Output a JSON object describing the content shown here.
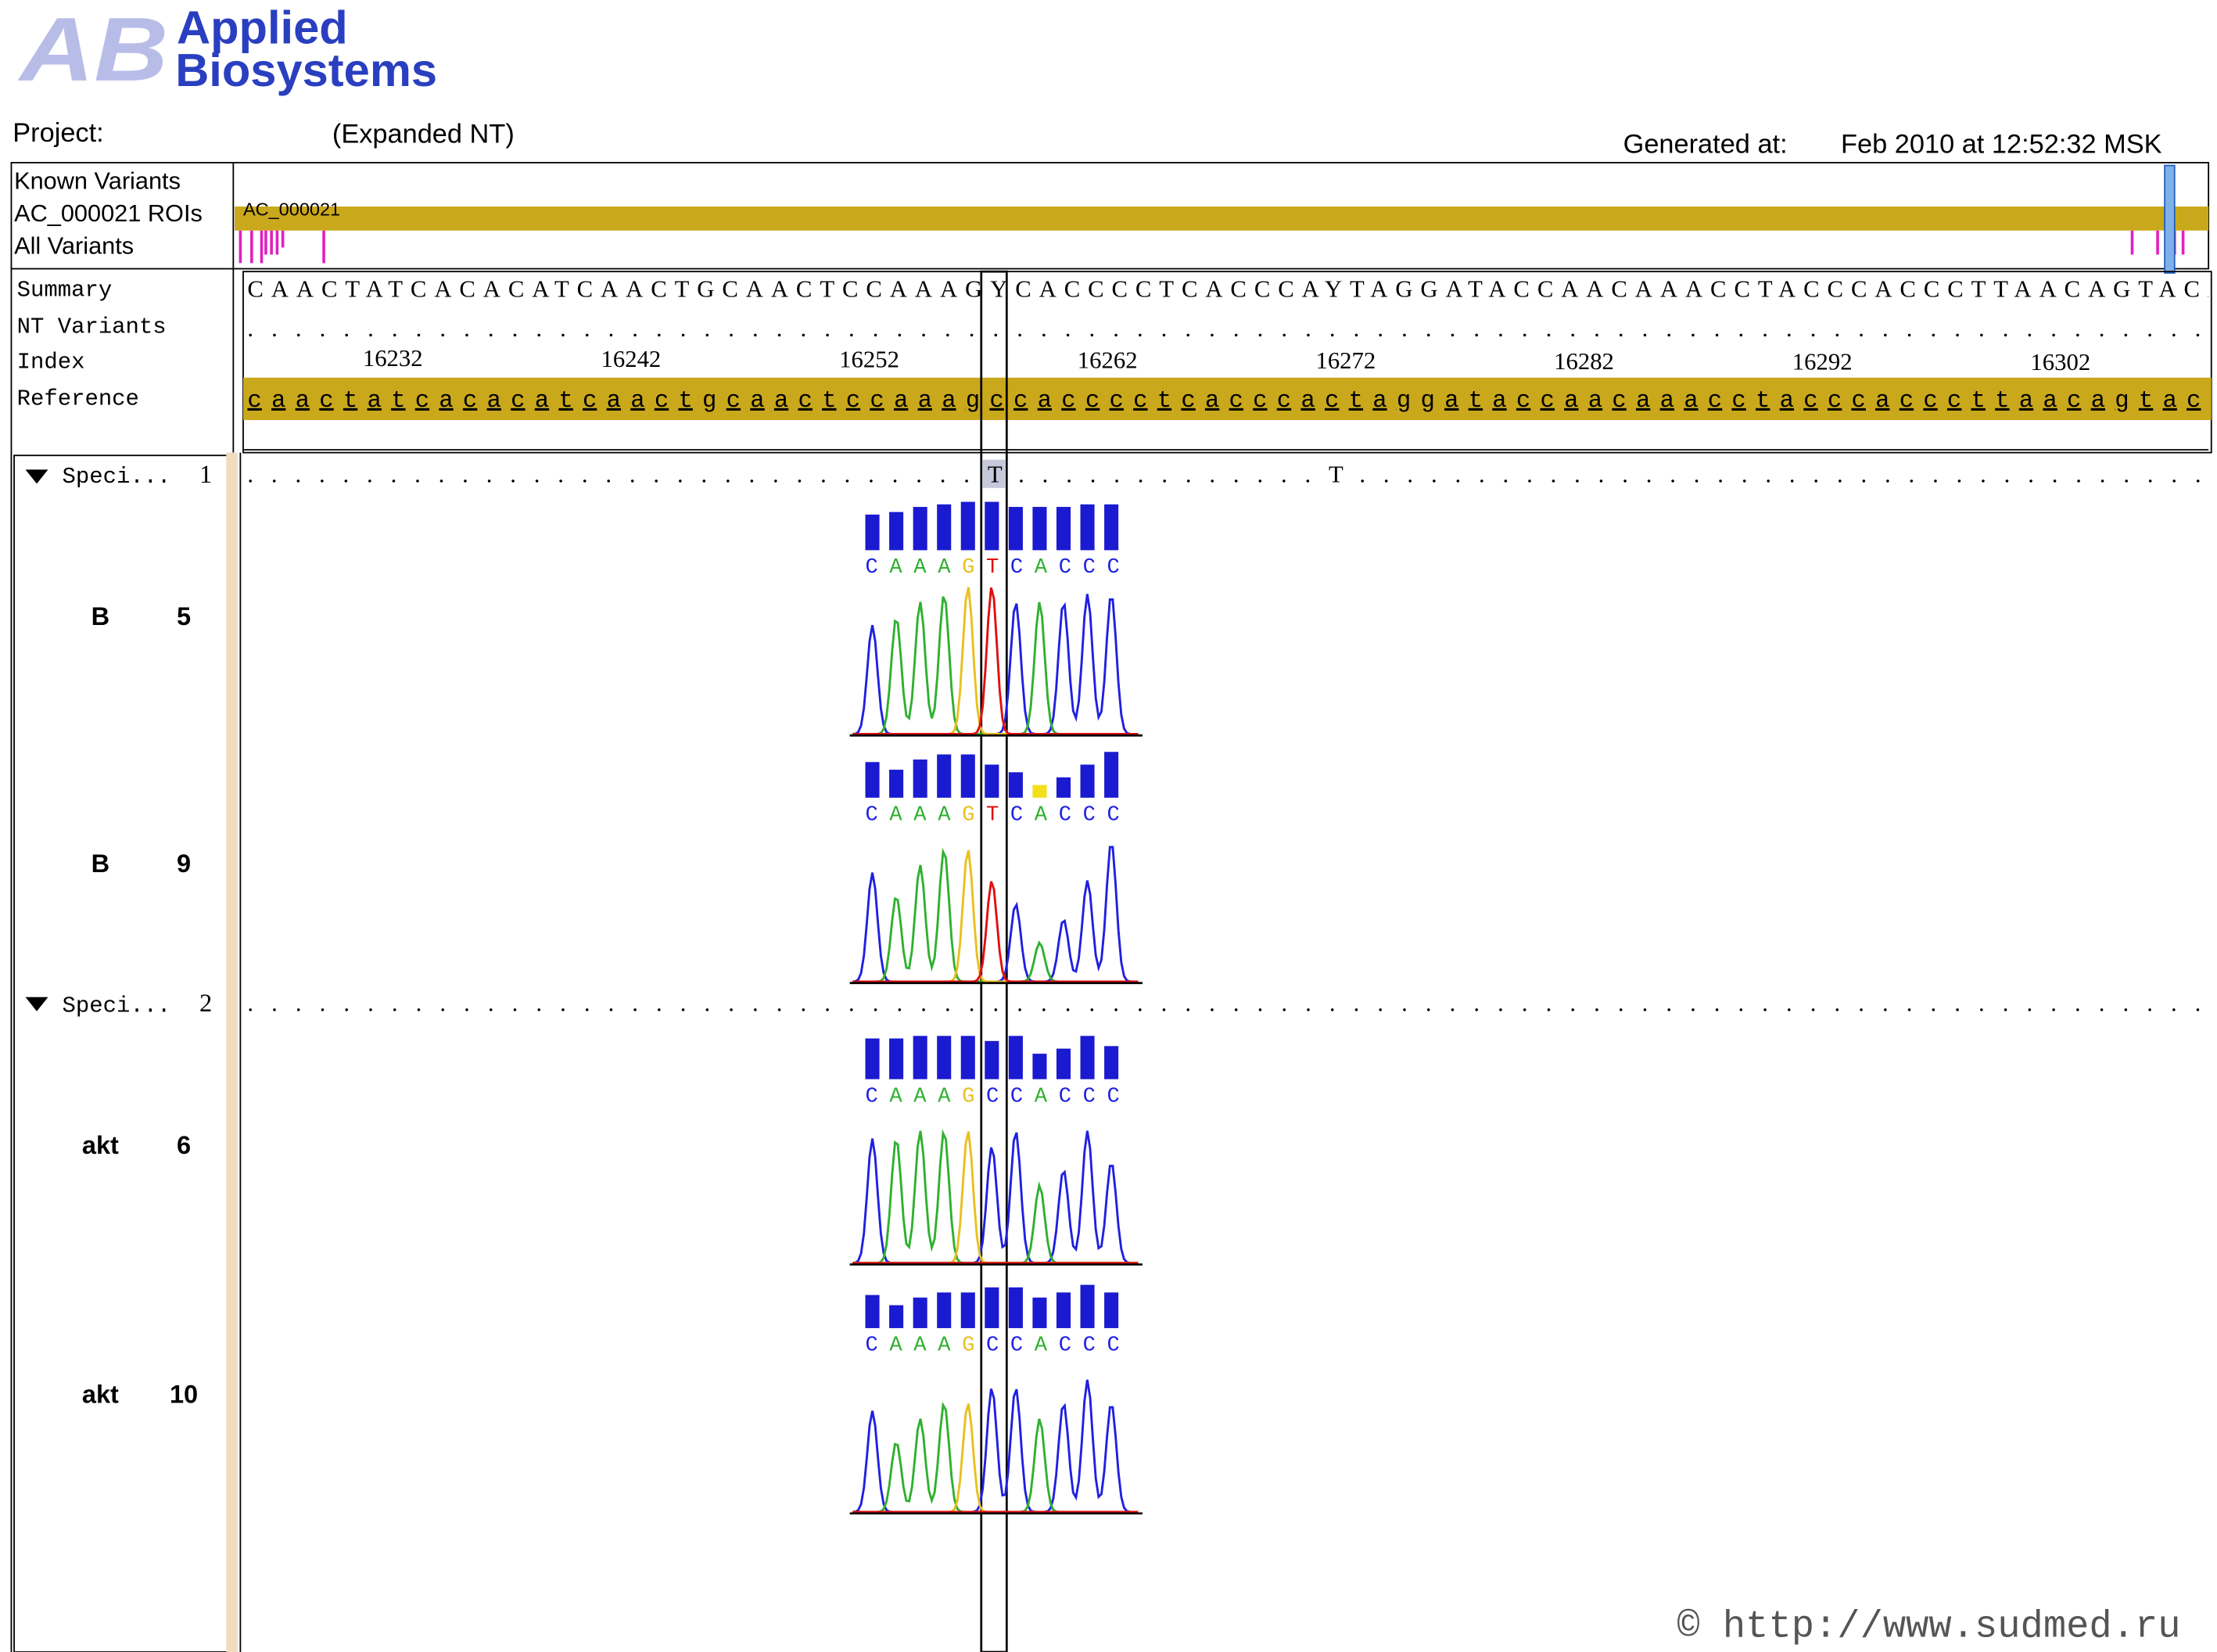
{
  "header": {
    "logo_mark": "AB",
    "brand_line1": "Applied",
    "brand_line2": "Biosystems",
    "project_label": "Project:",
    "project_name": "(Expanded NT)",
    "generated_label": "Generated at:",
    "generated_value": "Feb 2010 at 12:52:32 MSK"
  },
  "tracks": {
    "labels": [
      "Known Variants",
      "AC_000021 ROIs",
      "All Variants"
    ],
    "roi_name": "AC_000021"
  },
  "rows": {
    "labels": [
      "Summary",
      "NT Variants",
      "Index",
      "Reference"
    ],
    "summary": "CAACTATCACACATCAACTGCAACTCCAAAGYCACCCCTCACCCAYTAGGATACCAACAAACCTACCCACCCTTAACAGTACA",
    "nt_variants": "...................................................................................",
    "index_ticks": [
      16232,
      16242,
      16252,
      16262,
      16272,
      16282,
      16292,
      16302
    ],
    "reference": "caactatcacacatcaactgcaactccaaagccacccctcacccactaggataccaacaaacctacccacccttaacagtaca"
  },
  "specimens": [
    {
      "label": "Speci...",
      "number": 1,
      "variant_line": "...............................T.............T.....................................",
      "samples": [
        {
          "name": "B",
          "number": 5,
          "bases": "CAAAGTCACCC",
          "quality": [
            28,
            30,
            34,
            36,
            38,
            38,
            34,
            34,
            34,
            36,
            36
          ],
          "bar_colors": [
            "#1a1ad0",
            "#1a1ad0",
            "#1a1ad0",
            "#1a1ad0",
            "#1a1ad0",
            "#1a1ad0",
            "#1a1ad0",
            "#1a1ad0",
            "#1a1ad0",
            "#1a1ad0",
            "#1a1ad0"
          ]
        },
        {
          "name": "B",
          "number": 9,
          "bases": "CAAAGTCACCC",
          "quality": [
            28,
            22,
            30,
            34,
            34,
            26,
            20,
            10,
            16,
            26,
            36
          ],
          "bar_colors": [
            "#1a1ad0",
            "#1a1ad0",
            "#1a1ad0",
            "#1a1ad0",
            "#1a1ad0",
            "#1a1ad0",
            "#1a1ad0",
            "#f2e01a",
            "#1a1ad0",
            "#1a1ad0",
            "#1a1ad0"
          ]
        }
      ]
    },
    {
      "label": "Speci...",
      "number": 2,
      "variant_line": "...................................................................................",
      "samples": [
        {
          "name": "akt",
          "number": 6,
          "bases": "CAAAGCCACCC",
          "quality": [
            32,
            32,
            34,
            34,
            34,
            30,
            34,
            20,
            24,
            34,
            26
          ],
          "bar_colors": [
            "#1a1ad0",
            "#1a1ad0",
            "#1a1ad0",
            "#1a1ad0",
            "#1a1ad0",
            "#1a1ad0",
            "#1a1ad0",
            "#1a1ad0",
            "#1a1ad0",
            "#1a1ad0",
            "#1a1ad0"
          ]
        },
        {
          "name": "akt",
          "number": 10,
          "bases": "CAAAGCCACCC",
          "quality": [
            26,
            18,
            24,
            28,
            28,
            32,
            32,
            24,
            28,
            34,
            28
          ],
          "bar_colors": [
            "#1a1ad0",
            "#1a1ad0",
            "#1a1ad0",
            "#1a1ad0",
            "#1a1ad0",
            "#1a1ad0",
            "#1a1ad0",
            "#1a1ad0",
            "#1a1ad0",
            "#1a1ad0",
            "#1a1ad0"
          ]
        }
      ]
    }
  ],
  "footer": {
    "watermark": "© http://www.sudmed.ru"
  }
}
